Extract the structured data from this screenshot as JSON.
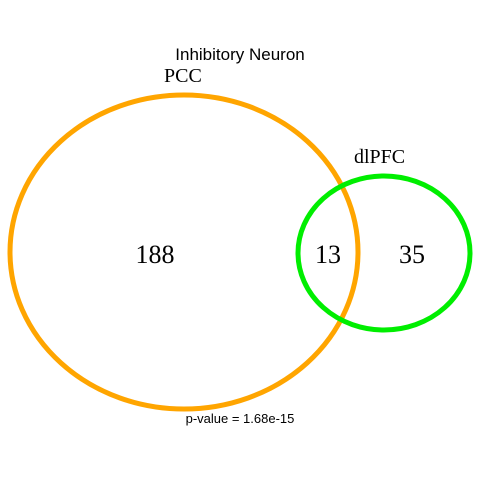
{
  "title": "Inhibitory Neuron",
  "sets": [
    {
      "name": "PCC",
      "color": "#FFA500"
    },
    {
      "name": "dlPFC",
      "color": "#00EE00"
    }
  ],
  "counts": {
    "left_only": "188",
    "overlap": "13",
    "right_only": "35"
  },
  "footnote": "p-value = 1.68e-15"
}
